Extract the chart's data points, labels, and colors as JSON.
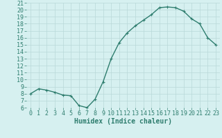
{
  "x": [
    0,
    1,
    2,
    3,
    4,
    5,
    6,
    7,
    8,
    9,
    10,
    11,
    12,
    13,
    14,
    15,
    16,
    17,
    18,
    19,
    20,
    21,
    22,
    23
  ],
  "y": [
    8.0,
    8.7,
    8.5,
    8.2,
    7.8,
    7.7,
    6.3,
    6.0,
    7.2,
    9.7,
    13.0,
    15.3,
    16.7,
    17.7,
    18.5,
    19.3,
    20.3,
    20.4,
    20.3,
    19.8,
    18.7,
    18.0,
    16.0,
    15.0
  ],
  "line_color": "#2e7d6e",
  "marker": "+",
  "marker_size": 3.5,
  "bg_color": "#d6f0f0",
  "grid_color": "#b8d8d8",
  "xlabel": "Humidex (Indice chaleur)",
  "xlim": [
    -0.5,
    23.5
  ],
  "ylim": [
    6,
    21
  ],
  "yticks": [
    6,
    7,
    8,
    9,
    10,
    11,
    12,
    13,
    14,
    15,
    16,
    17,
    18,
    19,
    20,
    21
  ],
  "xticks": [
    0,
    1,
    2,
    3,
    4,
    5,
    6,
    7,
    8,
    9,
    10,
    11,
    12,
    13,
    14,
    15,
    16,
    17,
    18,
    19,
    20,
    21,
    22,
    23
  ],
  "xlabel_fontsize": 7,
  "tick_fontsize": 6,
  "linewidth": 1.0
}
